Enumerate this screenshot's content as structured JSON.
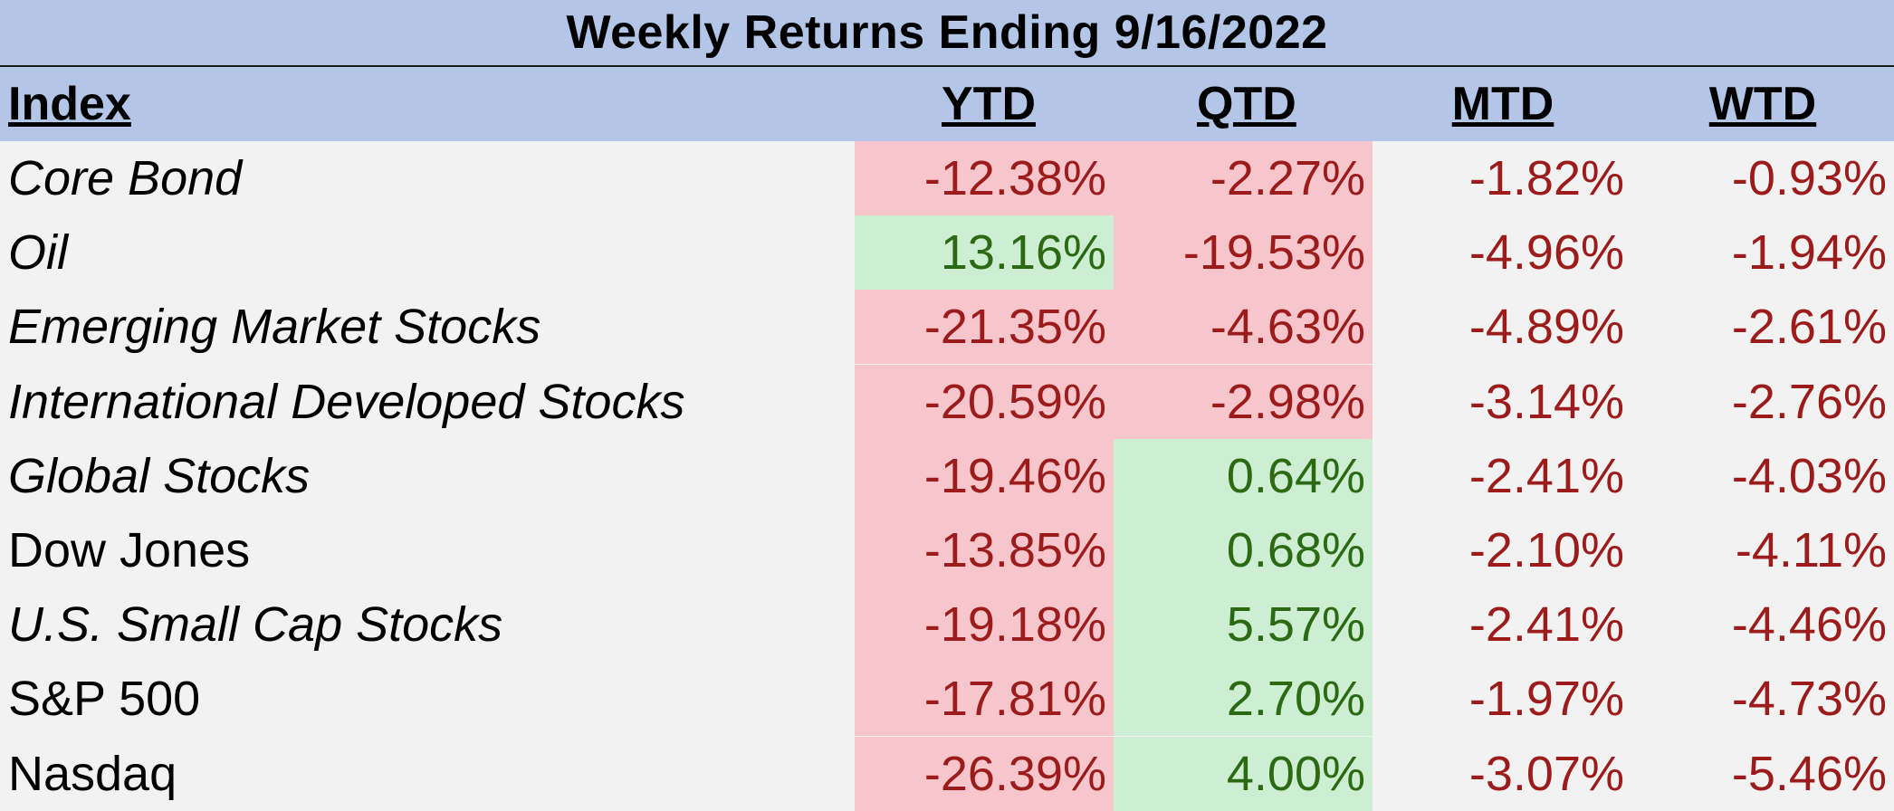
{
  "title": "Weekly Returns Ending 9/16/2022",
  "columns": [
    "Index",
    "YTD",
    "QTD",
    "MTD",
    "WTD"
  ],
  "rows": [
    {
      "name": "Core Bond",
      "italic": true,
      "values": [
        "-12.38%",
        "-2.27%",
        "-1.82%",
        "-0.93%"
      ]
    },
    {
      "name": "Oil",
      "italic": true,
      "values": [
        "13.16%",
        "-19.53%",
        "-4.96%",
        "-1.94%"
      ]
    },
    {
      "name": "Emerging Market Stocks",
      "italic": true,
      "values": [
        "-21.35%",
        "-4.63%",
        "-4.89%",
        "-2.61%"
      ]
    },
    {
      "name": "International Developed Stocks",
      "italic": true,
      "values": [
        "-20.59%",
        "-2.98%",
        "-3.14%",
        "-2.76%"
      ]
    },
    {
      "name": "Global Stocks",
      "italic": true,
      "values": [
        "-19.46%",
        "0.64%",
        "-2.41%",
        "-4.03%"
      ]
    },
    {
      "name": "Dow Jones",
      "italic": false,
      "values": [
        "-13.85%",
        "0.68%",
        "-2.10%",
        "-4.11%"
      ]
    },
    {
      "name": "U.S. Small Cap Stocks",
      "italic": true,
      "values": [
        "-19.18%",
        "5.57%",
        "-2.41%",
        "-4.46%"
      ]
    },
    {
      "name": "S&P 500",
      "italic": false,
      "values": [
        "-17.81%",
        "2.70%",
        "-1.97%",
        "-4.73%"
      ]
    },
    {
      "name": "Nasdaq",
      "italic": false,
      "values": [
        "-26.39%",
        "4.00%",
        "-3.07%",
        "-5.46%"
      ]
    }
  ],
  "colors": {
    "header_bg": "#b4c6e7",
    "body_bg": "#f2f2f2",
    "neg_fill": "#f7c6cc",
    "neg_text": "#9c1c1c",
    "pos_fill": "#cdeed3",
    "pos_text": "#2b6a12"
  },
  "chart_data": {
    "type": "table",
    "title": "Weekly Returns Ending 9/16/2022",
    "columns": [
      "Index",
      "YTD",
      "QTD",
      "MTD",
      "WTD"
    ],
    "rows": [
      [
        "Core Bond",
        -12.38,
        -2.27,
        -1.82,
        -0.93
      ],
      [
        "Oil",
        13.16,
        -19.53,
        -4.96,
        -1.94
      ],
      [
        "Emerging Market Stocks",
        -21.35,
        -4.63,
        -4.89,
        -2.61
      ],
      [
        "International Developed Stocks",
        -20.59,
        -2.98,
        -3.14,
        -2.76
      ],
      [
        "Global Stocks",
        -19.46,
        0.64,
        -2.41,
        -4.03
      ],
      [
        "Dow Jones",
        -13.85,
        0.68,
        -2.1,
        -4.11
      ],
      [
        "U.S. Small Cap Stocks",
        -19.18,
        5.57,
        -2.41,
        -4.46
      ],
      [
        "S&P 500",
        -17.81,
        2.7,
        -1.97,
        -4.73
      ],
      [
        "Nasdaq",
        -26.39,
        4.0,
        -3.07,
        -5.46
      ]
    ]
  }
}
